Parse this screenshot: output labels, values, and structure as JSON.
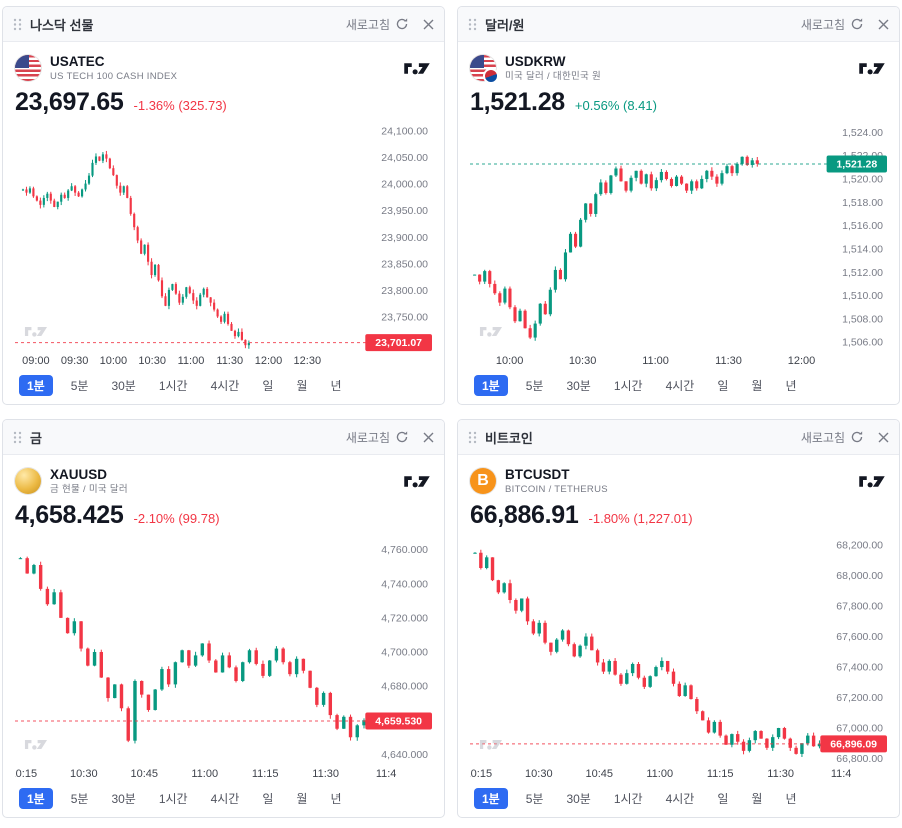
{
  "ui": {
    "refresh_label": "새로고침",
    "timeframes": [
      "1분",
      "5분",
      "30분",
      "1시간",
      "4시간",
      "일",
      "월",
      "년"
    ],
    "selected_timeframe": "1분",
    "colors": {
      "up": "#089981",
      "down": "#f23645",
      "accent_blue": "#2e6bf2",
      "axis_text": "#787b86"
    }
  },
  "panels": [
    {
      "title": "나스닥 선물",
      "symbol": "USATEC",
      "subtitle": "US TECH 100 CASH INDEX",
      "price": "23,697.65",
      "change": "-1.36% (325.73)",
      "direction": "down",
      "logo": "us-flag",
      "logo_glyph": ""
    },
    {
      "title": "달러/원",
      "symbol": "USDKRW",
      "subtitle": "미국 달러 / 대한민국 원",
      "price": "1,521.28",
      "change": "+0.56% (8.41)",
      "direction": "up",
      "logo": "usdkrw",
      "logo_glyph": ""
    },
    {
      "title": "금",
      "symbol": "XAUUSD",
      "subtitle": "금 현물 / 미국 달러",
      "price": "4,658.425",
      "change": "-2.10% (99.78)",
      "direction": "down",
      "logo": "gold",
      "logo_glyph": ""
    },
    {
      "title": "비트코인",
      "symbol": "BTCUSDT",
      "subtitle": "BITCOIN / TETHERUS",
      "price": "66,886.91",
      "change": "-1.80% (1,227.01)",
      "direction": "down",
      "logo": "btc",
      "logo_glyph": "B"
    }
  ],
  "chart_data": [
    {
      "type": "candlestick",
      "title": "나스닥 선물 (USATEC) 1분",
      "trend": "down",
      "y_min": 23685,
      "y_max": 24115,
      "last_price": 23701.07,
      "last_label": "23,701.07",
      "y_ticks": [
        {
          "value": 24100,
          "label": "24,100.00"
        },
        {
          "value": 24050,
          "label": "24,050.00"
        },
        {
          "value": 24000,
          "label": "24,000.00"
        },
        {
          "value": 23950,
          "label": "23,950.00"
        },
        {
          "value": 23900,
          "label": "23,900.00"
        },
        {
          "value": 23850,
          "label": "23,850.00"
        },
        {
          "value": 23800,
          "label": "23,800.00"
        },
        {
          "value": 23750,
          "label": "23,750.00"
        }
      ],
      "x_ticks": [
        "09:00",
        "09:30",
        "10:00",
        "10:30",
        "11:00",
        "11:30",
        "12:00",
        "12:30"
      ],
      "closes": [
        23990,
        23984,
        23992,
        23977,
        23969,
        23961,
        23974,
        23982,
        23969,
        23957,
        23967,
        23980,
        23974,
        23988,
        23996,
        23984,
        23977,
        23990,
        24001,
        24016,
        24040,
        24052,
        24044,
        24056,
        24048,
        24030,
        24017,
        23997,
        23984,
        23996,
        23974,
        23944,
        23919,
        23894,
        23869,
        23886,
        23854,
        23829,
        23848,
        23819,
        23789,
        23771,
        23801,
        23812,
        23794,
        23777,
        23788,
        23806,
        23795,
        23781,
        23771,
        23792,
        23803,
        23787,
        23777,
        23764,
        23751,
        23741,
        23756,
        23737,
        23724,
        23714,
        23722,
        23707,
        23697,
        23701
      ]
    },
    {
      "type": "candlestick",
      "title": "달러/원 (USDKRW) 1분",
      "trend": "up",
      "y_min": 1505.2,
      "y_max": 1524.8,
      "last_price": 1521.28,
      "last_label": "1,521.28",
      "y_ticks": [
        {
          "value": 1524,
          "label": "1,524.00"
        },
        {
          "value": 1522,
          "label": "1,522.00"
        },
        {
          "value": 1520,
          "label": "1,520.00"
        },
        {
          "value": 1518,
          "label": "1,518.00"
        },
        {
          "value": 1516,
          "label": "1,516.00"
        },
        {
          "value": 1514,
          "label": "1,514.00"
        },
        {
          "value": 1512,
          "label": "1,512.00"
        },
        {
          "value": 1510,
          "label": "1,510.00"
        },
        {
          "value": 1508,
          "label": "1,508.00"
        },
        {
          "value": 1506,
          "label": "1,506.00"
        }
      ],
      "x_ticks": [
        "10:00",
        "10:30",
        "11:00",
        "11:30",
        "12:00"
      ],
      "closes": [
        1511.8,
        1511.2,
        1512.1,
        1511.0,
        1510.2,
        1509.4,
        1510.6,
        1509.0,
        1507.8,
        1508.7,
        1507.2,
        1506.4,
        1507.6,
        1509.3,
        1508.4,
        1510.5,
        1512.2,
        1511.4,
        1513.7,
        1515.3,
        1514.2,
        1516.5,
        1517.9,
        1517.0,
        1518.7,
        1519.7,
        1518.8,
        1520.3,
        1520.9,
        1519.8,
        1519.0,
        1520.1,
        1520.7,
        1519.6,
        1520.4,
        1519.2,
        1519.9,
        1520.6,
        1520.0,
        1519.4,
        1520.2,
        1519.6,
        1519.0,
        1519.8,
        1519.2,
        1520.0,
        1520.7,
        1520.2,
        1519.6,
        1520.5,
        1521.1,
        1520.5,
        1521.3,
        1521.9,
        1521.2,
        1521.6,
        1521.3
      ]
    },
    {
      "type": "candlestick",
      "title": "금 (XAUUSD) 1분",
      "trend": "down",
      "y_min": 4634,
      "y_max": 4768,
      "last_price": 4659.53,
      "last_label": "4,659.530",
      "y_ticks": [
        {
          "value": 4760,
          "label": "4,760.000"
        },
        {
          "value": 4740,
          "label": "4,740.000"
        },
        {
          "value": 4720,
          "label": "4,720.000"
        },
        {
          "value": 4700,
          "label": "4,700.000"
        },
        {
          "value": 4680,
          "label": "4,680.000"
        },
        {
          "value": 4660,
          "label": "4,660.000"
        },
        {
          "value": 4640,
          "label": "4,640.000"
        }
      ],
      "x_ticks": [
        "10:15",
        "10:30",
        "10:45",
        "11:00",
        "11:15",
        "11:30",
        "11:4"
      ],
      "closes": [
        4755,
        4746,
        4751,
        4737,
        4728,
        4735,
        4720,
        4711,
        4718,
        4702,
        4692,
        4700,
        4685,
        4673,
        4681,
        4667,
        4648,
        4683,
        4675,
        4666,
        4678,
        4690,
        4681,
        4694,
        4701,
        4692,
        4698,
        4705,
        4695,
        4688,
        4698,
        4691,
        4683,
        4694,
        4701,
        4693,
        4686,
        4695,
        4702,
        4694,
        4687,
        4696,
        4689,
        4679,
        4669,
        4676,
        4663,
        4655,
        4662,
        4650,
        4657,
        4660
      ]
    },
    {
      "type": "candlestick",
      "title": "비트코인 (BTCUSDT) 1분",
      "trend": "down",
      "y_min": 66760,
      "y_max": 68260,
      "last_price": 66896.09,
      "last_label": "66,896.09",
      "y_ticks": [
        {
          "value": 68200,
          "label": "68,200.00"
        },
        {
          "value": 68000,
          "label": "68,000.00"
        },
        {
          "value": 67800,
          "label": "67,800.00"
        },
        {
          "value": 67600,
          "label": "67,600.00"
        },
        {
          "value": 67400,
          "label": "67,400.00"
        },
        {
          "value": 67200,
          "label": "67,200.00"
        },
        {
          "value": 67000,
          "label": "67,000.00"
        },
        {
          "value": 66800,
          "label": "66,800.00"
        }
      ],
      "x_ticks": [
        "10:15",
        "10:30",
        "10:45",
        "11:00",
        "11:15",
        "11:30",
        "11:4"
      ],
      "closes": [
        68150,
        68050,
        68120,
        67970,
        67890,
        67950,
        67840,
        67770,
        67850,
        67700,
        67620,
        67690,
        67560,
        67500,
        67580,
        67640,
        67550,
        67470,
        67540,
        67600,
        67510,
        67430,
        67370,
        67440,
        67350,
        67290,
        67360,
        67420,
        67330,
        67270,
        67340,
        67400,
        67440,
        67370,
        67290,
        67210,
        67280,
        67190,
        67110,
        67050,
        66970,
        67040,
        66950,
        66890,
        66960,
        66910,
        66850,
        66920,
        66980,
        66930,
        66870,
        66940,
        67000,
        66930,
        66870,
        66830,
        66900,
        66950,
        66880,
        66896
      ]
    }
  ]
}
